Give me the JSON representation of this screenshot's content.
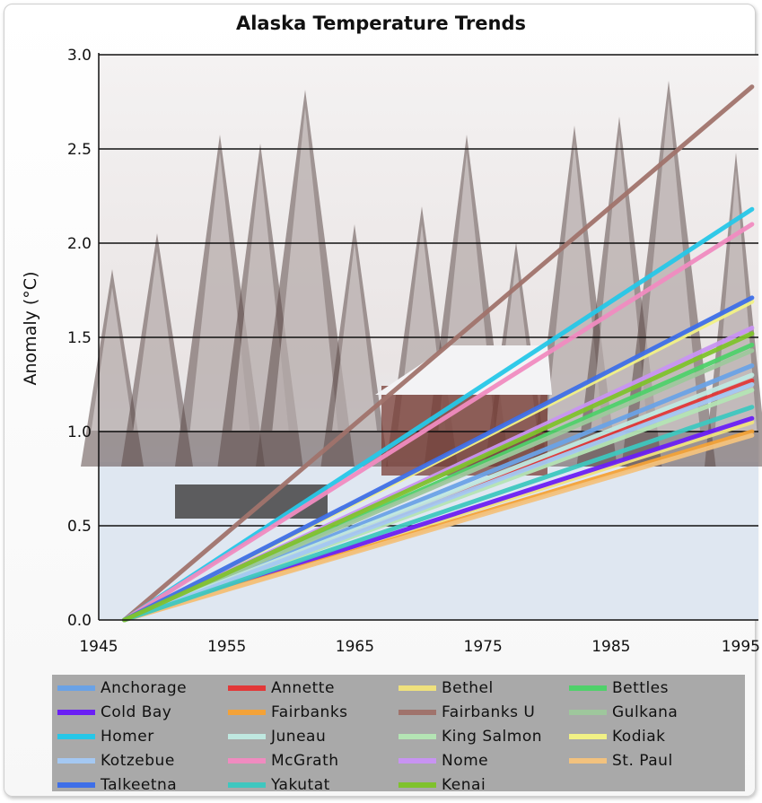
{
  "chart_data": {
    "type": "line",
    "title": "Alaska Temperature Trends",
    "xlabel": "",
    "ylabel": "Anomaly (°C)",
    "xlim": [
      1945,
      1996.5
    ],
    "ylim": [
      0.0,
      3.0
    ],
    "x_ticks": [
      "1945",
      "1955",
      "1965",
      "1975",
      "1985",
      "1995"
    ],
    "y_ticks": [
      "0.0",
      "0.5",
      "1.0",
      "1.5",
      "2.0",
      "2.5",
      "3.0"
    ],
    "grid": "horizontal",
    "legend_position": "bottom",
    "background": "snowy forest photograph",
    "series": [
      {
        "name": "Anchorage",
        "color": "#6aa2e6",
        "x": [
          1947,
          1996
        ],
        "values": [
          0.0,
          1.35
        ]
      },
      {
        "name": "Annette",
        "color": "#e23838",
        "x": [
          1947,
          1996
        ],
        "values": [
          0.0,
          1.27
        ]
      },
      {
        "name": "Bethel",
        "color": "#efe17d",
        "x": [
          1947,
          1996
        ],
        "values": [
          0.0,
          1.05
        ]
      },
      {
        "name": "Bettles",
        "color": "#4fd16a",
        "x": [
          1947,
          1996
        ],
        "values": [
          0.0,
          1.46
        ]
      },
      {
        "name": "Cold Bay",
        "color": "#6a1ff5",
        "x": [
          1947,
          1996
        ],
        "values": [
          0.0,
          1.07
        ]
      },
      {
        "name": "Fairbanks",
        "color": "#f3a238",
        "x": [
          1947,
          1996
        ],
        "values": [
          0.0,
          1.0
        ]
      },
      {
        "name": "Fairbanks U",
        "color": "#a0736c",
        "x": [
          1947,
          1996
        ],
        "values": [
          0.0,
          2.83
        ]
      },
      {
        "name": "Gulkana",
        "color": "#9ec79c",
        "x": [
          1947,
          1996
        ],
        "values": [
          0.0,
          1.43
        ]
      },
      {
        "name": "Homer",
        "color": "#26c7e8",
        "x": [
          1947,
          1996
        ],
        "values": [
          0.0,
          2.18
        ]
      },
      {
        "name": "Juneau",
        "color": "#bfe8e0",
        "x": [
          1947,
          1996
        ],
        "values": [
          0.0,
          1.3
        ]
      },
      {
        "name": "King Salmon",
        "color": "#b4e4b4",
        "x": [
          1947,
          1996
        ],
        "values": [
          0.0,
          1.22
        ]
      },
      {
        "name": "Kodiak",
        "color": "#f1f185",
        "x": [
          1947,
          1996
        ],
        "values": [
          0.0,
          1.69
        ]
      },
      {
        "name": "Kotzebue",
        "color": "#a4c8f2",
        "x": [
          1947,
          1996
        ],
        "values": [
          0.0,
          1.25
        ]
      },
      {
        "name": "McGrath",
        "color": "#f08bc0",
        "x": [
          1947,
          1996
        ],
        "values": [
          0.0,
          2.1
        ]
      },
      {
        "name": "Nome",
        "color": "#c893f2",
        "x": [
          1947,
          1996
        ],
        "values": [
          0.0,
          1.55
        ]
      },
      {
        "name": "St. Paul",
        "color": "#f2c27e",
        "x": [
          1947,
          1996
        ],
        "values": [
          0.0,
          0.98
        ]
      },
      {
        "name": "Talkeetna",
        "color": "#3e6fe8",
        "x": [
          1947,
          1996
        ],
        "values": [
          0.0,
          1.71
        ]
      },
      {
        "name": "Yakutat",
        "color": "#3ec7bf",
        "x": [
          1947,
          1996
        ],
        "values": [
          0.0,
          1.13
        ]
      },
      {
        "name": "Kenai",
        "color": "#7fc22d",
        "x": [
          1947,
          1996
        ],
        "values": [
          0.0,
          1.52
        ]
      }
    ]
  }
}
